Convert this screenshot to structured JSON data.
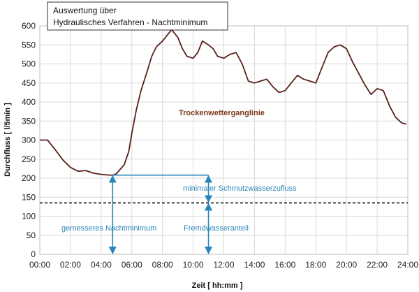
{
  "chart_data": {
    "type": "line",
    "title": [
      "Auswertung über",
      "Hydraulisches Verfahren - Nachtminimum"
    ],
    "xlabel": "Zeit  [ hh:mm ]",
    "ylabel": "Durchfluss  [ l/5min ]",
    "xlim": [
      0,
      24
    ],
    "ylim": [
      0,
      600
    ],
    "x_ticks": [
      "00:00",
      "02:00",
      "04:00",
      "06:00",
      "08:00",
      "10:00",
      "12:00",
      "14:00",
      "16:00",
      "18:00",
      "20:00",
      "22:00",
      "24:00"
    ],
    "y_ticks": [
      0,
      50,
      100,
      150,
      200,
      250,
      300,
      350,
      400,
      450,
      500,
      550,
      600
    ],
    "grid": true,
    "series": [
      {
        "name": "Trockenwetterganglinie",
        "color": "#5a1f1a",
        "x": [
          0,
          0.5,
          1,
          1.5,
          2,
          2.5,
          3,
          3.5,
          4,
          4.5,
          4.8,
          5,
          5.5,
          5.8,
          6,
          6.3,
          6.6,
          7,
          7.3,
          7.6,
          8,
          8.3,
          8.6,
          9,
          9.3,
          9.6,
          10,
          10.3,
          10.6,
          11,
          11.3,
          11.6,
          12,
          12.4,
          12.8,
          13.2,
          13.6,
          14,
          14.4,
          14.8,
          15.2,
          15.6,
          16,
          16.4,
          16.8,
          17.2,
          17.6,
          18,
          18.4,
          18.8,
          19.2,
          19.6,
          20,
          20.4,
          20.8,
          21.2,
          21.6,
          22,
          22.4,
          22.8,
          23.2,
          23.6,
          23.9
        ],
        "y": [
          300,
          300,
          275,
          248,
          228,
          218,
          220,
          213,
          210,
          208,
          208,
          212,
          235,
          270,
          318,
          380,
          430,
          480,
          520,
          545,
          560,
          575,
          590,
          570,
          540,
          520,
          515,
          530,
          560,
          550,
          540,
          520,
          515,
          525,
          530,
          500,
          455,
          450,
          455,
          460,
          440,
          425,
          430,
          450,
          470,
          460,
          455,
          450,
          490,
          530,
          545,
          550,
          540,
          505,
          475,
          445,
          420,
          435,
          430,
          390,
          360,
          345,
          342
        ]
      }
    ],
    "annotations": {
      "series_label": "Trockenwetterganglinie",
      "night_minimum": "gemesseres Nachtminimum",
      "min_sewage_inflow": "minimaler Schmutzwasserzufluss",
      "infiltration": "Fremdwasseranteil"
    },
    "reference_lines": {
      "dashed_level": 135,
      "night_minimum_value": 208,
      "night_minimum_time": 4.75,
      "arrow_time": 11.0
    },
    "colors": {
      "annotation": "#2a86b8",
      "series_label": "#7a3a1a",
      "dashed": "#111111",
      "grid": "#d9d9d9"
    }
  }
}
